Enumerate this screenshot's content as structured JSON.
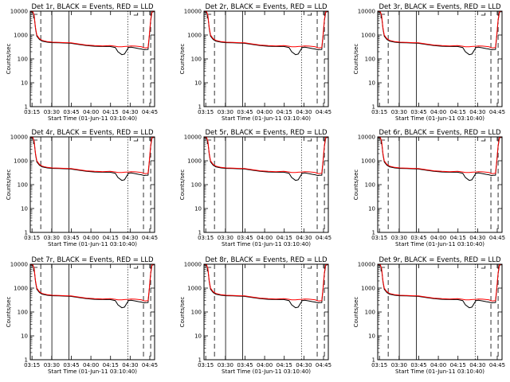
{
  "chart_data": [
    {
      "type": "line",
      "title": "Det 1r, BLACK = Events, RED = LLD"
    },
    {
      "type": "line",
      "title": "Det 2r, BLACK = Events, RED = LLD"
    },
    {
      "type": "line",
      "title": "Det 3r, BLACK = Events, RED = LLD"
    },
    {
      "type": "line",
      "title": "Det 4r, BLACK = Events, RED = LLD"
    },
    {
      "type": "line",
      "title": "Det 5r, BLACK = Events, RED = LLD"
    },
    {
      "type": "line",
      "title": "Det 6r, BLACK = Events, RED = LLD"
    },
    {
      "type": "line",
      "title": "Det 7r, BLACK = Events, RED = LLD"
    },
    {
      "type": "line",
      "title": "Det 8r, BLACK = Events, RED = LLD"
    },
    {
      "type": "line",
      "title": "Det 9r, BLACK = Events, RED = LLD"
    }
  ],
  "shared": {
    "xlabel": "Start Time (01-Jun-11 03:10:40)",
    "ylabel": "Counts/sec",
    "xlim_minutes": [
      3.0,
      98.0
    ],
    "ylim_log": [
      1,
      10000
    ],
    "x_ticks": [
      {
        "label": "03:15",
        "min": 4.33
      },
      {
        "label": "03:30",
        "min": 19.33
      },
      {
        "label": "03:45",
        "min": 34.33
      },
      {
        "label": "04:00",
        "min": 49.33
      },
      {
        "label": "04:15",
        "min": 64.33
      },
      {
        "label": "04:30",
        "min": 79.33
      },
      {
        "label": "04:45",
        "min": 94.33
      }
    ],
    "y_ticks": [
      {
        "label": "1",
        "value": 1
      },
      {
        "label": "10",
        "value": 10
      },
      {
        "label": "100",
        "value": 100
      },
      {
        "label": "1000",
        "value": 1000
      },
      {
        "label": "10000",
        "value": 10000
      }
    ],
    "vlines": [
      {
        "min": 11.0,
        "style": "dashed"
      },
      {
        "min": 19.5,
        "style": "solid"
      },
      {
        "min": 32.5,
        "style": "solid"
      },
      {
        "min": 77.5,
        "style": "dotted"
      },
      {
        "min": 89.5,
        "style": "dashed"
      },
      {
        "min": 95.0,
        "style": "dashed"
      }
    ],
    "x_minutes": [
      3,
      4,
      5,
      6,
      7,
      8,
      10,
      12,
      16,
      20,
      25,
      30,
      34,
      40,
      46,
      52,
      58,
      64,
      68,
      70,
      73,
      75,
      78,
      80,
      83,
      86,
      88,
      90,
      91,
      93,
      94,
      95,
      96,
      97,
      98
    ],
    "events": [
      9500,
      9500,
      9000,
      6000,
      1800,
      900,
      650,
      560,
      500,
      480,
      470,
      460,
      450,
      400,
      360,
      340,
      330,
      330,
      300,
      200,
      150,
      160,
      300,
      310,
      290,
      270,
      260,
      240,
      245,
      250,
      900,
      4000,
      9000,
      9500,
      9500
    ],
    "lld": [
      9800,
      9800,
      9500,
      6500,
      2000,
      1000,
      700,
      600,
      530,
      500,
      490,
      480,
      470,
      420,
      380,
      360,
      350,
      360,
      340,
      320,
      320,
      330,
      340,
      350,
      345,
      330,
      320,
      290,
      290,
      300,
      1000,
      4500,
      9300,
      9800,
      9800
    ],
    "colors": {
      "events": "#000000",
      "lld": "#ff0000"
    }
  }
}
